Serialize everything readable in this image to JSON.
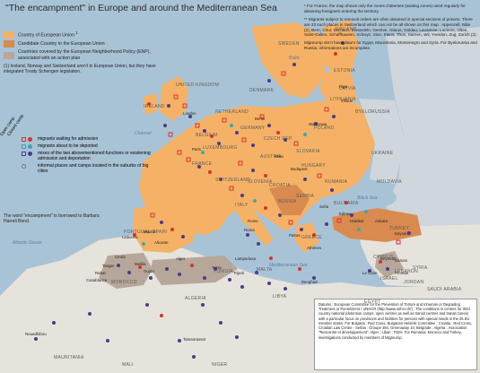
{
  "title": "\"The encampment\" in Europe and around the Mediterranean Sea",
  "legend": {
    "items": [
      {
        "label": "Country of European Union",
        "sup": "1",
        "color": "#f5b266"
      },
      {
        "label": "Candidate Country to the European Union",
        "color": "#d98a4e"
      },
      {
        "label": "Countries covered by the European Neighborhood Policy (ENP), associated with an action plan",
        "color": "#b7a79a"
      }
    ],
    "footnote": "(1) Iceland, Norway and Switzerland aren't in European Union, but they have integrated Treaty Schengen legislation."
  },
  "symbol_legend": {
    "column_headings": [
      "Open camp",
      "Closed camp"
    ],
    "rows": [
      {
        "label": "migrants waiting for admission",
        "color": "#d6322f"
      },
      {
        "label": "migrants about to be deported",
        "color": "#3aa7b3"
      },
      {
        "label": "mixes of the two abovementioned functions or existening admission and deportation",
        "color": "#4b3b88"
      },
      {
        "label": "informal places and camps located in the suburbs of big cities",
        "color": "#bfbfbf"
      }
    ],
    "credit": "The word \"encampment\" is borrowed to Barbara Harrell Bond."
  },
  "notes": [
    "* For France, the map shows only the zones d'attentes (waiting zones) used regularly for detaining foreigners entering the territory.",
    "** Migrants subject to removal orders are often detained in special sections of prisons. There are 23 such places in Switzerland which can not be all shown on this map : Appenzell, Bâle (2), Bern, Chur, Dornach, Einsiedeln, Genève, Glarus, Goldau, Lausanne, Lucerne, Olten, Saint-Gallen, Schaffhausen, Schwyz, Sion, Stans, Thun, Sarnen, Wil, Yverdon, Zug, Zurich (2).",
    "Migreurop don't have datum for Egypt, Macedonia, Montenegro and Syria. For Byelorussia and Russia, informations are incomplete."
  ],
  "sources": "Datums : European Committee for the Prevention of Torture and Inhuman or Degrading Treatment or Punishment / UNHCR (http://www.unhcr.ch/) ; The conditions in centres for third country national (detention camps, open centres as well as transit centres and transit zones) with a particular focus on provisions and facilities for persons with special needs in the 25 EU member states. For Bulgaria : Red Cross, Bulgarian Helsinki Committee ; Croatia : Red Cross, Croatian Law Centre ; Serbia : Groupe 484, Greenaway 10, Belgrade ; Algeria : Association \"Rencontre et développement\", Alger ; Liban : FIDH. For Rumania, Morocco and Turkey, investigations conducted by members of Migreurop.",
  "map_labels": {
    "seas": [
      "Atlantic Ocean",
      "Channel",
      "Baltic",
      "Black Sea",
      "Mediterranean Sea"
    ],
    "countries": [
      "FINLAND",
      "SWEDEN",
      "ESTONIA",
      "LATVIA",
      "LITHUANIA",
      "BYELORUSSIA",
      "UKRAINE",
      "MOLDAVIA",
      "POLAND",
      "GERMANY",
      "NETHERLAND",
      "DENMARK",
      "UNITED KINGDOM",
      "IRELAND",
      "BELGIUM",
      "LUXEMBOURG",
      "FRANCE",
      "SWITZERLAND",
      "AUSTRIA",
      "CZECH REP.",
      "SLOVAKIA",
      "HUNGARY",
      "RUMANIA",
      "BULGARIA",
      "SLOVENIA",
      "CROATIA",
      "BOSNIA",
      "SERBIA",
      "ITALY",
      "SPAIN",
      "PORTUGAL",
      "GREECE",
      "TURKEY",
      "CYPRUS",
      "SYRIA",
      "LEBANON",
      "ISRAEL",
      "JORDAN",
      "SAUDI ARABIA",
      "EGYPT",
      "LIBYA",
      "TUNISIA",
      "ALGERIA",
      "MOROCCO",
      "MAURITANIA",
      "MALI",
      "NIGER",
      "MALTA"
    ],
    "cities": [
      "Riga",
      "Vilnius",
      "London",
      "Paris",
      "Madrid",
      "Lisbonne",
      "Rome",
      "Roma",
      "Berlin",
      "Wien",
      "Budapest",
      "Warszawa",
      "Sofia",
      "Athènes",
      "Ankara",
      "Istanbul",
      "Edirne",
      "Rabat",
      "Casablanca",
      "Oujda",
      "Tanger",
      "Alger",
      "Tunis",
      "Tripoli",
      "Benghazi",
      "Beyrouth",
      "Damas",
      "Amman",
      "Le Caire",
      "Tamanrasset",
      "Nouadhibou",
      "Ceuta",
      "Melilla",
      "Lampedusa",
      "Patras",
      "Kayseri",
      "Alicante"
    ]
  },
  "colors": {
    "sea": "#a9c3d6",
    "eu": "#f5b266",
    "candidate": "#d98a4e",
    "enp": "#b7a79a",
    "other_land": "#cfd6dc",
    "desert": "#e6e3dc",
    "red": "#d6322f",
    "teal": "#3aa7b3",
    "purple": "#4b3b88"
  }
}
